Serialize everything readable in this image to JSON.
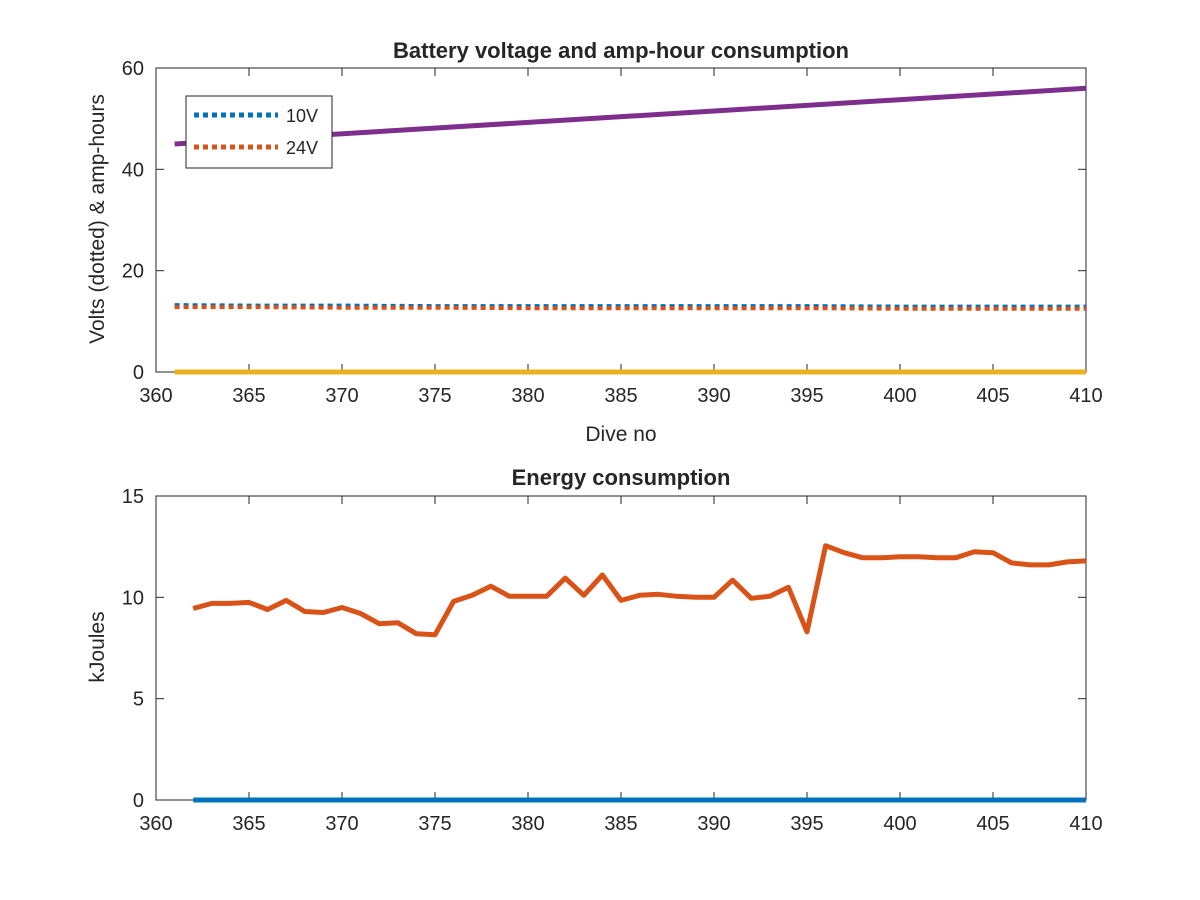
{
  "chart_data": [
    {
      "type": "line",
      "title": "Battery voltage and amp-hour consumption",
      "xlabel": "Dive no",
      "ylabel": "Volts (dotted) & amp-hours",
      "xlim": [
        360,
        410
      ],
      "ylim": [
        0,
        60
      ],
      "xticks": [
        360,
        365,
        370,
        375,
        380,
        385,
        390,
        395,
        400,
        405,
        410
      ],
      "yticks": [
        0,
        20,
        40,
        60
      ],
      "grid": false,
      "legend_position": "top-left",
      "series": [
        {
          "name": "10V",
          "style": "dotted",
          "color": "#0072BD",
          "x": [
            361,
            365,
            370,
            375,
            380,
            385,
            390,
            395,
            400,
            405,
            410
          ],
          "y": [
            13.2,
            13.1,
            13.1,
            13.0,
            13.0,
            13.0,
            13.0,
            13.0,
            12.9,
            12.9,
            12.9
          ]
        },
        {
          "name": "24V",
          "style": "dotted",
          "color": "#D95319",
          "x": [
            361,
            365,
            370,
            375,
            380,
            385,
            390,
            395,
            400,
            405,
            410
          ],
          "y": [
            12.8,
            12.8,
            12.7,
            12.7,
            12.6,
            12.6,
            12.6,
            12.6,
            12.5,
            12.5,
            12.5
          ]
        },
        {
          "style": "solid",
          "color": "#7E2F8E",
          "x": [
            361,
            410
          ],
          "y": [
            45,
            56
          ]
        },
        {
          "style": "solid",
          "color": "#EDB120",
          "x": [
            361,
            410
          ],
          "y": [
            0,
            0
          ]
        }
      ]
    },
    {
      "type": "line",
      "title": "Energy consumption",
      "xlabel": "",
      "ylabel": "kJoules",
      "xlim": [
        360,
        410
      ],
      "ylim": [
        0,
        15
      ],
      "xticks": [
        360,
        365,
        370,
        375,
        380,
        385,
        390,
        395,
        400,
        405,
        410
      ],
      "yticks": [
        0,
        5,
        10,
        15
      ],
      "grid": false,
      "series": [
        {
          "style": "solid",
          "color": "#0072BD",
          "x": [
            362,
            410
          ],
          "y": [
            0,
            0
          ]
        },
        {
          "style": "solid",
          "color": "#D95319",
          "x": [
            362,
            363,
            364,
            365,
            366,
            367,
            368,
            369,
            370,
            371,
            372,
            373,
            374,
            375,
            376,
            377,
            378,
            379,
            380,
            381,
            382,
            383,
            384,
            385,
            386,
            387,
            388,
            389,
            390,
            391,
            392,
            393,
            394,
            395,
            396,
            397,
            398,
            399,
            400,
            401,
            402,
            403,
            404,
            405,
            406,
            407,
            408,
            409,
            410
          ],
          "y": [
            9.45,
            9.7,
            9.7,
            9.75,
            9.4,
            9.85,
            9.3,
            9.25,
            9.5,
            9.2,
            8.7,
            8.75,
            8.2,
            8.15,
            9.8,
            10.1,
            10.55,
            10.05,
            10.05,
            10.05,
            10.95,
            10.1,
            11.1,
            9.85,
            10.1,
            10.15,
            10.05,
            10.0,
            10.0,
            10.85,
            9.95,
            10.05,
            10.5,
            8.3,
            12.55,
            12.2,
            11.95,
            11.95,
            12.0,
            12.0,
            11.95,
            11.95,
            12.25,
            12.2,
            11.7,
            11.6,
            11.6,
            11.75,
            11.8
          ]
        }
      ]
    }
  ]
}
